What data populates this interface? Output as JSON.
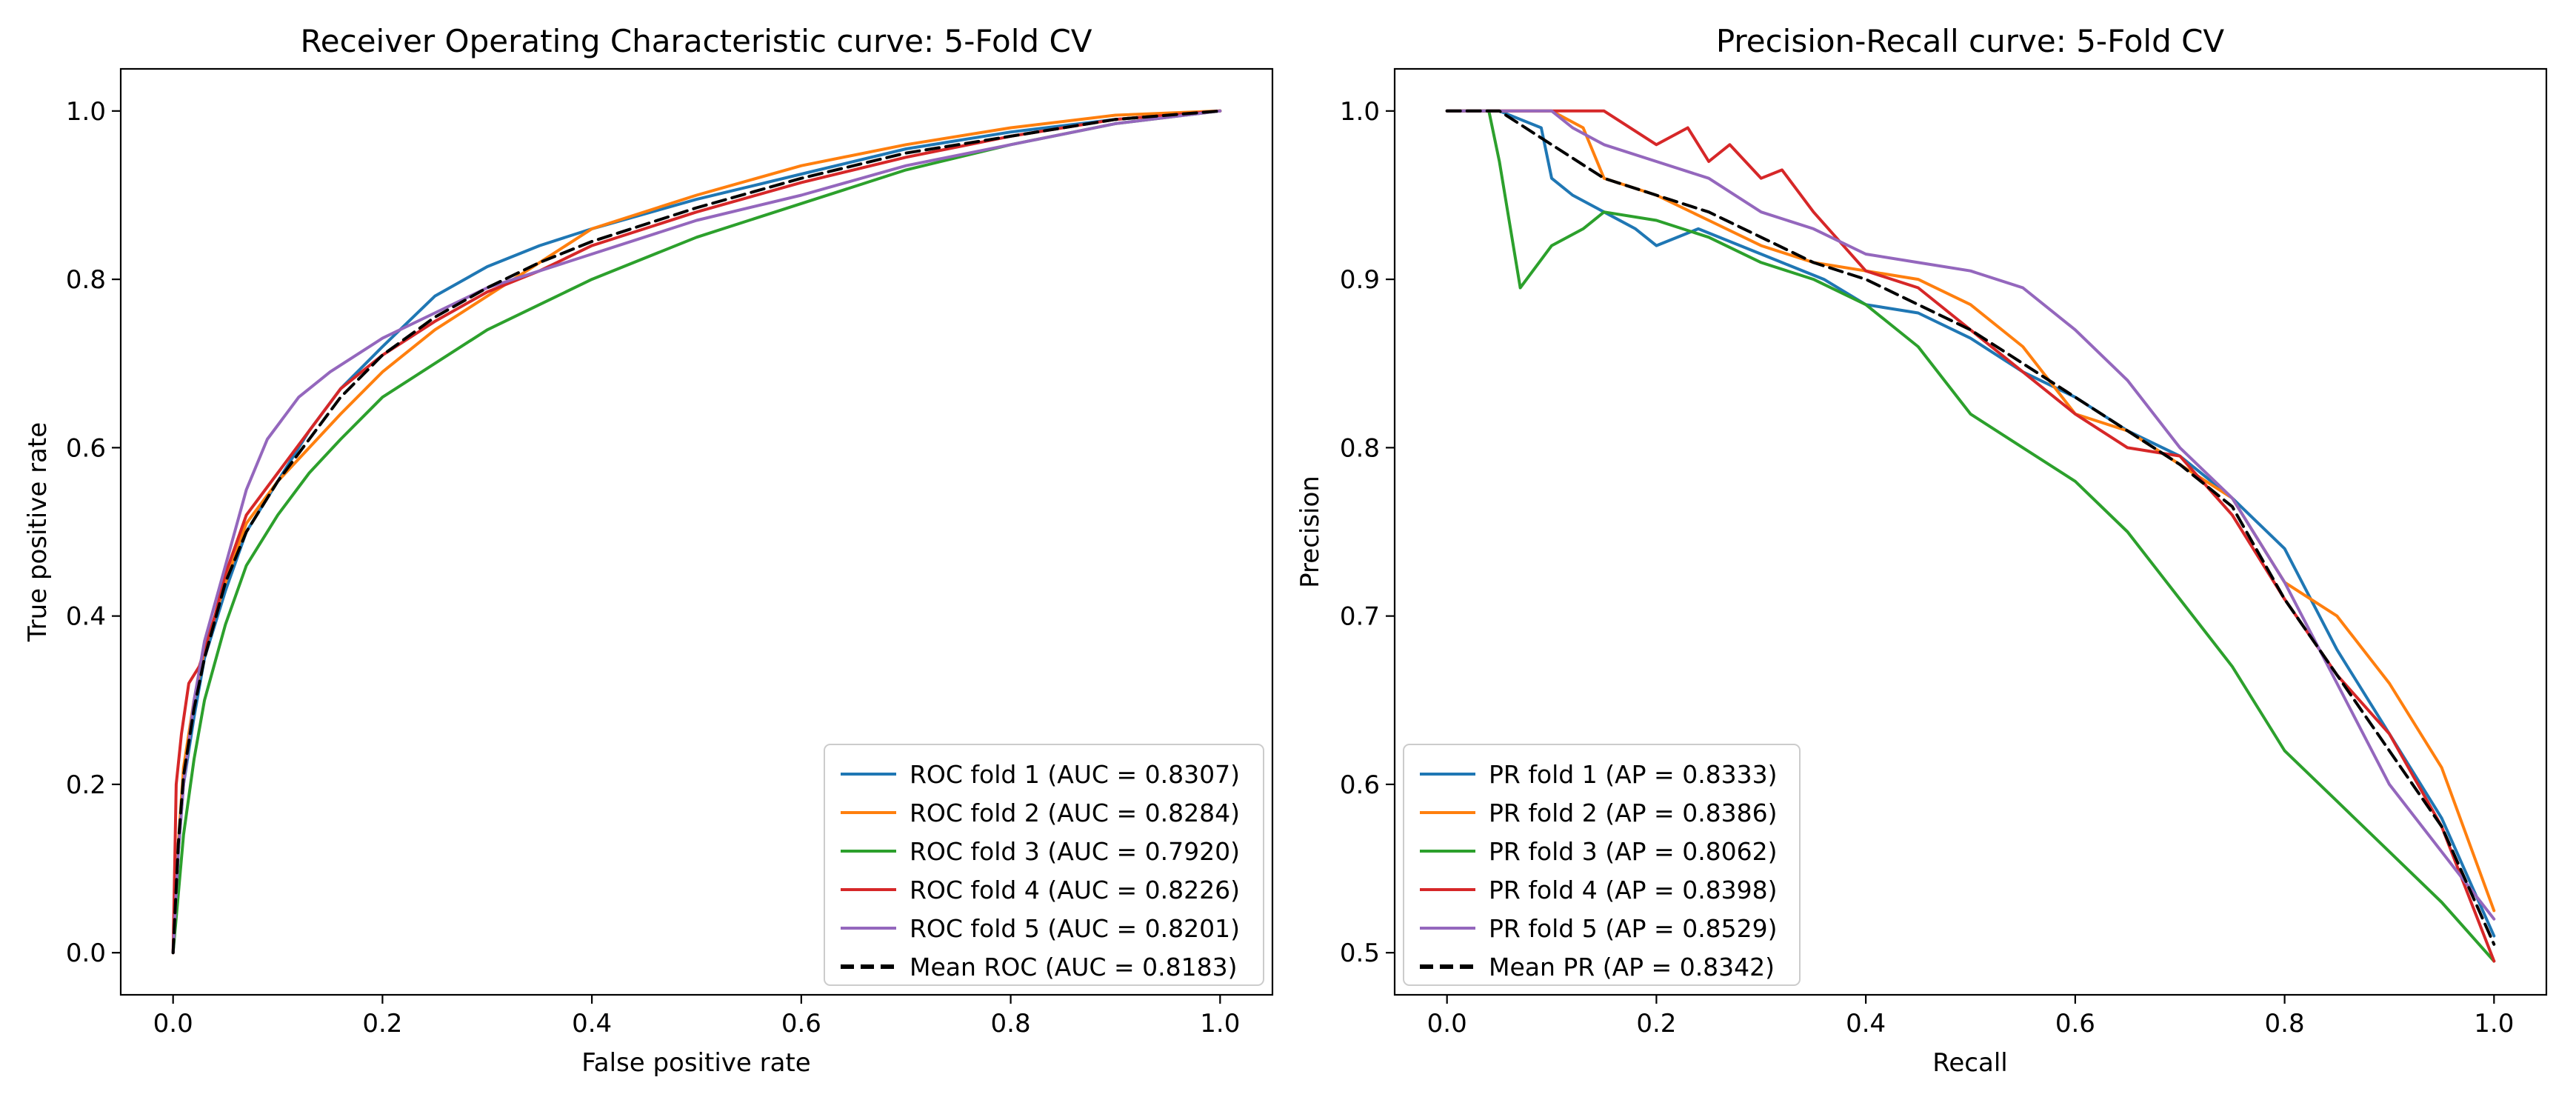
{
  "colors": {
    "fold1": "#1f77b4",
    "fold2": "#ff7f0e",
    "fold3": "#2ca02c",
    "fold4": "#d62728",
    "fold5": "#9467bd",
    "mean": "#000000"
  },
  "chart_data": [
    {
      "type": "line",
      "title": "Receiver Operating Characteristic curve: 5-Fold CV",
      "xlabel": "False positive rate",
      "ylabel": "True positive rate",
      "xlim": [
        -0.05,
        1.05
      ],
      "ylim": [
        -0.05,
        1.05
      ],
      "xticks": [
        0.0,
        0.2,
        0.4,
        0.6,
        0.8,
        1.0
      ],
      "yticks": [
        0.0,
        0.2,
        0.4,
        0.6,
        0.8,
        1.0
      ],
      "xtick_labels": [
        "0.0",
        "0.2",
        "0.4",
        "0.6",
        "0.8",
        "1.0"
      ],
      "ytick_labels": [
        "0.0",
        "0.2",
        "0.4",
        "0.6",
        "0.8",
        "1.0"
      ],
      "legend_position": "lower right",
      "series": [
        {
          "name": "ROC fold 1 (AUC = 0.8307)",
          "color": "fold1",
          "dashed": false,
          "x": [
            0,
            0.005,
            0.01,
            0.02,
            0.03,
            0.05,
            0.07,
            0.1,
            0.13,
            0.16,
            0.2,
            0.25,
            0.3,
            0.35,
            0.4,
            0.5,
            0.6,
            0.7,
            0.8,
            0.9,
            1.0
          ],
          "y": [
            0,
            0.12,
            0.2,
            0.28,
            0.35,
            0.43,
            0.5,
            0.56,
            0.62,
            0.67,
            0.72,
            0.78,
            0.815,
            0.84,
            0.86,
            0.895,
            0.925,
            0.955,
            0.975,
            0.99,
            1.0
          ]
        },
        {
          "name": "ROC fold 2 (AUC = 0.8284)",
          "color": "fold2",
          "dashed": false,
          "x": [
            0,
            0.005,
            0.01,
            0.02,
            0.03,
            0.05,
            0.07,
            0.1,
            0.13,
            0.16,
            0.2,
            0.25,
            0.3,
            0.35,
            0.4,
            0.5,
            0.6,
            0.7,
            0.8,
            0.9,
            1.0
          ],
          "y": [
            0,
            0.13,
            0.22,
            0.3,
            0.36,
            0.44,
            0.51,
            0.56,
            0.6,
            0.64,
            0.69,
            0.74,
            0.78,
            0.82,
            0.86,
            0.9,
            0.935,
            0.96,
            0.98,
            0.995,
            1.0
          ]
        },
        {
          "name": "ROC fold 3 (AUC = 0.7920)",
          "color": "fold3",
          "dashed": false,
          "x": [
            0,
            0.005,
            0.01,
            0.02,
            0.03,
            0.05,
            0.07,
            0.1,
            0.13,
            0.16,
            0.2,
            0.25,
            0.3,
            0.35,
            0.4,
            0.5,
            0.6,
            0.7,
            0.8,
            0.9,
            1.0
          ],
          "y": [
            0,
            0.07,
            0.14,
            0.23,
            0.3,
            0.39,
            0.46,
            0.52,
            0.57,
            0.61,
            0.66,
            0.7,
            0.74,
            0.77,
            0.8,
            0.85,
            0.89,
            0.93,
            0.96,
            0.985,
            1.0
          ]
        },
        {
          "name": "ROC fold 4 (AUC = 0.8226)",
          "color": "fold4",
          "dashed": false,
          "x": [
            0,
            0.003,
            0.008,
            0.015,
            0.025,
            0.04,
            0.05,
            0.07,
            0.1,
            0.13,
            0.16,
            0.2,
            0.25,
            0.3,
            0.35,
            0.4,
            0.5,
            0.6,
            0.7,
            0.8,
            0.9,
            1.0
          ],
          "y": [
            0,
            0.2,
            0.26,
            0.32,
            0.34,
            0.4,
            0.45,
            0.52,
            0.57,
            0.62,
            0.67,
            0.71,
            0.75,
            0.785,
            0.81,
            0.84,
            0.88,
            0.915,
            0.945,
            0.97,
            0.99,
            1.0
          ]
        },
        {
          "name": "ROC fold 5 (AUC = 0.8201)",
          "color": "fold5",
          "dashed": false,
          "x": [
            0,
            0.005,
            0.01,
            0.02,
            0.03,
            0.05,
            0.07,
            0.09,
            0.12,
            0.15,
            0.2,
            0.25,
            0.3,
            0.35,
            0.4,
            0.5,
            0.6,
            0.7,
            0.8,
            0.9,
            1.0
          ],
          "y": [
            0,
            0.12,
            0.2,
            0.3,
            0.37,
            0.46,
            0.55,
            0.61,
            0.66,
            0.69,
            0.73,
            0.76,
            0.79,
            0.81,
            0.83,
            0.87,
            0.9,
            0.935,
            0.96,
            0.985,
            1.0
          ]
        },
        {
          "name": "Mean ROC (AUC = 0.8183)",
          "color": "mean",
          "dashed": true,
          "x": [
            0,
            0.005,
            0.01,
            0.02,
            0.03,
            0.05,
            0.07,
            0.1,
            0.13,
            0.16,
            0.2,
            0.25,
            0.3,
            0.35,
            0.4,
            0.5,
            0.6,
            0.7,
            0.8,
            0.9,
            1.0
          ],
          "y": [
            0,
            0.13,
            0.21,
            0.29,
            0.35,
            0.44,
            0.5,
            0.56,
            0.61,
            0.66,
            0.71,
            0.755,
            0.79,
            0.82,
            0.845,
            0.885,
            0.92,
            0.95,
            0.97,
            0.99,
            1.0
          ]
        }
      ]
    },
    {
      "type": "line",
      "title": "Precision-Recall curve: 5-Fold CV",
      "xlabel": "Recall",
      "ylabel": "Precision",
      "xlim": [
        -0.05,
        1.05
      ],
      "ylim": [
        0.475,
        1.025
      ],
      "xticks": [
        0.0,
        0.2,
        0.4,
        0.6,
        0.8,
        1.0
      ],
      "yticks": [
        0.5,
        0.6,
        0.7,
        0.8,
        0.9,
        1.0
      ],
      "xtick_labels": [
        "0.0",
        "0.2",
        "0.4",
        "0.6",
        "0.8",
        "1.0"
      ],
      "ytick_labels": [
        "0.5",
        "0.6",
        "0.7",
        "0.8",
        "0.9",
        "1.0"
      ],
      "legend_position": "lower left",
      "series": [
        {
          "name": "PR fold 1 (AP = 0.8333)",
          "color": "fold1",
          "dashed": false,
          "x": [
            0,
            0.05,
            0.09,
            0.1,
            0.12,
            0.15,
            0.18,
            0.2,
            0.24,
            0.28,
            0.32,
            0.36,
            0.4,
            0.45,
            0.5,
            0.55,
            0.6,
            0.65,
            0.7,
            0.75,
            0.8,
            0.85,
            0.9,
            0.95,
            1.0
          ],
          "y": [
            1.0,
            1.0,
            0.99,
            0.96,
            0.95,
            0.94,
            0.93,
            0.92,
            0.93,
            0.92,
            0.91,
            0.9,
            0.885,
            0.88,
            0.865,
            0.845,
            0.83,
            0.81,
            0.795,
            0.77,
            0.74,
            0.68,
            0.63,
            0.58,
            0.51
          ]
        },
        {
          "name": "PR fold 2 (AP = 0.8386)",
          "color": "fold2",
          "dashed": false,
          "x": [
            0,
            0.05,
            0.1,
            0.13,
            0.15,
            0.2,
            0.25,
            0.3,
            0.35,
            0.4,
            0.45,
            0.5,
            0.55,
            0.6,
            0.65,
            0.7,
            0.75,
            0.8,
            0.85,
            0.9,
            0.95,
            1.0
          ],
          "y": [
            1.0,
            1.0,
            1.0,
            0.99,
            0.96,
            0.95,
            0.935,
            0.92,
            0.91,
            0.905,
            0.9,
            0.885,
            0.86,
            0.82,
            0.81,
            0.79,
            0.77,
            0.72,
            0.7,
            0.66,
            0.61,
            0.525
          ]
        },
        {
          "name": "PR fold 3 (AP = 0.8062)",
          "color": "fold3",
          "dashed": false,
          "x": [
            0,
            0.04,
            0.05,
            0.07,
            0.1,
            0.13,
            0.15,
            0.2,
            0.25,
            0.3,
            0.35,
            0.4,
            0.45,
            0.5,
            0.55,
            0.6,
            0.65,
            0.7,
            0.75,
            0.8,
            0.85,
            0.9,
            0.95,
            1.0
          ],
          "y": [
            1.0,
            1.0,
            0.97,
            0.895,
            0.92,
            0.93,
            0.94,
            0.935,
            0.925,
            0.91,
            0.9,
            0.885,
            0.86,
            0.82,
            0.8,
            0.78,
            0.75,
            0.71,
            0.67,
            0.62,
            0.59,
            0.56,
            0.53,
            0.495
          ]
        },
        {
          "name": "PR fold 4 (AP = 0.8398)",
          "color": "fold4",
          "dashed": false,
          "x": [
            0,
            0.05,
            0.1,
            0.15,
            0.2,
            0.23,
            0.25,
            0.27,
            0.3,
            0.32,
            0.35,
            0.4,
            0.45,
            0.5,
            0.55,
            0.6,
            0.65,
            0.7,
            0.75,
            0.8,
            0.85,
            0.9,
            0.95,
            1.0
          ],
          "y": [
            1.0,
            1.0,
            1.0,
            1.0,
            0.98,
            0.99,
            0.97,
            0.98,
            0.96,
            0.965,
            0.94,
            0.905,
            0.895,
            0.87,
            0.845,
            0.82,
            0.8,
            0.795,
            0.76,
            0.71,
            0.665,
            0.63,
            0.575,
            0.495
          ]
        },
        {
          "name": "PR fold 5 (AP = 0.8529)",
          "color": "fold5",
          "dashed": false,
          "x": [
            0,
            0.05,
            0.1,
            0.12,
            0.15,
            0.2,
            0.25,
            0.3,
            0.35,
            0.4,
            0.45,
            0.5,
            0.55,
            0.6,
            0.65,
            0.7,
            0.75,
            0.8,
            0.85,
            0.9,
            0.95,
            1.0
          ],
          "y": [
            1.0,
            1.0,
            1.0,
            0.99,
            0.98,
            0.97,
            0.96,
            0.94,
            0.93,
            0.915,
            0.91,
            0.905,
            0.895,
            0.87,
            0.84,
            0.8,
            0.77,
            0.72,
            0.66,
            0.6,
            0.56,
            0.52
          ]
        },
        {
          "name": "Mean PR (AP = 0.8342)",
          "color": "mean",
          "dashed": true,
          "x": [
            0,
            0.05,
            0.1,
            0.15,
            0.2,
            0.25,
            0.3,
            0.35,
            0.4,
            0.45,
            0.5,
            0.55,
            0.6,
            0.65,
            0.7,
            0.75,
            0.8,
            0.85,
            0.9,
            0.95,
            1.0
          ],
          "y": [
            1.0,
            1.0,
            0.98,
            0.96,
            0.95,
            0.94,
            0.925,
            0.91,
            0.9,
            0.885,
            0.87,
            0.85,
            0.83,
            0.81,
            0.79,
            0.765,
            0.71,
            0.665,
            0.62,
            0.575,
            0.505
          ]
        }
      ]
    }
  ]
}
